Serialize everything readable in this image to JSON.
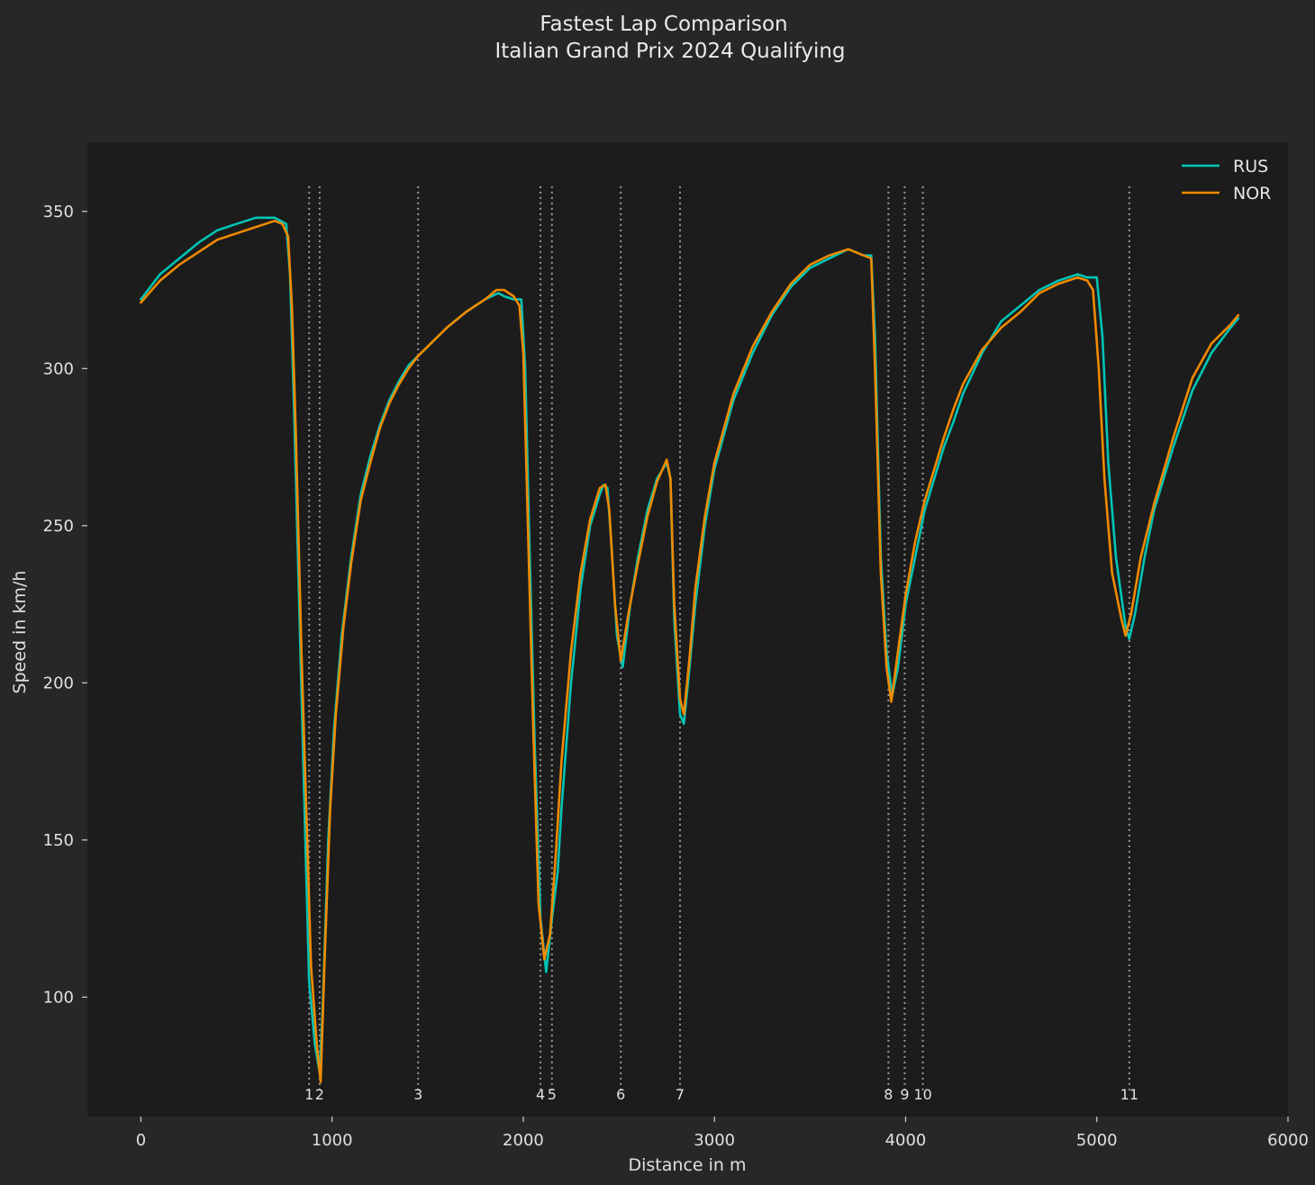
{
  "chart_data": {
    "type": "line",
    "title": "Fastest Lap Comparison",
    "subtitle": "Italian Grand Prix 2024 Qualifying",
    "xlabel": "Distance in m",
    "ylabel": "Speed in km/h",
    "xlim": [
      -280,
      6000
    ],
    "ylim": [
      62,
      372
    ],
    "x_ticks": [
      0,
      1000,
      2000,
      3000,
      4000,
      5000,
      6000
    ],
    "y_ticks": [
      100,
      150,
      200,
      250,
      300,
      350
    ],
    "grid": false,
    "legend": "top-right",
    "background": "#1c1c1c",
    "figure_background": "#272727",
    "corners": [
      {
        "number": "1",
        "distance": 880
      },
      {
        "number": "2",
        "distance": 935
      },
      {
        "number": "3",
        "distance": 1450
      },
      {
        "number": "4",
        "distance": 2090
      },
      {
        "number": "5",
        "distance": 2150
      },
      {
        "number": "6",
        "distance": 2510
      },
      {
        "number": "7",
        "distance": 2820
      },
      {
        "number": "8",
        "distance": 3910
      },
      {
        "number": "9",
        "distance": 3995
      },
      {
        "number": "10",
        "distance": 4090
      },
      {
        "number": "11",
        "distance": 5170
      }
    ],
    "series": [
      {
        "name": "RUS",
        "color": "#00c4b4",
        "points": [
          [
            0,
            322
          ],
          [
            100,
            330
          ],
          [
            200,
            335
          ],
          [
            300,
            340
          ],
          [
            400,
            344
          ],
          [
            500,
            346
          ],
          [
            600,
            348
          ],
          [
            700,
            348
          ],
          [
            760,
            346
          ],
          [
            780,
            330
          ],
          [
            800,
            290
          ],
          [
            830,
            220
          ],
          [
            860,
            150
          ],
          [
            880,
            105
          ],
          [
            910,
            85
          ],
          [
            935,
            76
          ],
          [
            950,
            95
          ],
          [
            980,
            150
          ],
          [
            1010,
            185
          ],
          [
            1050,
            215
          ],
          [
            1100,
            240
          ],
          [
            1150,
            260
          ],
          [
            1200,
            272
          ],
          [
            1250,
            282
          ],
          [
            1300,
            290
          ],
          [
            1350,
            296
          ],
          [
            1400,
            301
          ],
          [
            1450,
            304
          ],
          [
            1500,
            307
          ],
          [
            1600,
            313
          ],
          [
            1700,
            318
          ],
          [
            1800,
            322
          ],
          [
            1870,
            324
          ],
          [
            1900,
            323
          ],
          [
            1950,
            322
          ],
          [
            1990,
            322
          ],
          [
            2010,
            300
          ],
          [
            2030,
            250
          ],
          [
            2060,
            180
          ],
          [
            2090,
            125
          ],
          [
            2120,
            108
          ],
          [
            2150,
            125
          ],
          [
            2180,
            140
          ],
          [
            2200,
            160
          ],
          [
            2250,
            200
          ],
          [
            2300,
            230
          ],
          [
            2350,
            250
          ],
          [
            2400,
            260
          ],
          [
            2420,
            263
          ],
          [
            2440,
            262
          ],
          [
            2460,
            245
          ],
          [
            2490,
            215
          ],
          [
            2520,
            205
          ],
          [
            2560,
            225
          ],
          [
            2600,
            240
          ],
          [
            2650,
            255
          ],
          [
            2700,
            265
          ],
          [
            2750,
            270
          ],
          [
            2770,
            265
          ],
          [
            2790,
            220
          ],
          [
            2820,
            190
          ],
          [
            2840,
            187
          ],
          [
            2870,
            205
          ],
          [
            2900,
            225
          ],
          [
            2950,
            250
          ],
          [
            3000,
            268
          ],
          [
            3100,
            290
          ],
          [
            3200,
            305
          ],
          [
            3300,
            317
          ],
          [
            3400,
            326
          ],
          [
            3500,
            332
          ],
          [
            3600,
            335
          ],
          [
            3700,
            338
          ],
          [
            3780,
            336
          ],
          [
            3820,
            336
          ],
          [
            3840,
            310
          ],
          [
            3870,
            240
          ],
          [
            3900,
            210
          ],
          [
            3930,
            196
          ],
          [
            3960,
            205
          ],
          [
            4000,
            225
          ],
          [
            4050,
            240
          ],
          [
            4100,
            255
          ],
          [
            4150,
            265
          ],
          [
            4200,
            275
          ],
          [
            4250,
            283
          ],
          [
            4300,
            292
          ],
          [
            4400,
            305
          ],
          [
            4500,
            315
          ],
          [
            4600,
            320
          ],
          [
            4700,
            325
          ],
          [
            4800,
            328
          ],
          [
            4900,
            330
          ],
          [
            4950,
            329
          ],
          [
            5000,
            329
          ],
          [
            5030,
            310
          ],
          [
            5060,
            270
          ],
          [
            5100,
            240
          ],
          [
            5150,
            218
          ],
          [
            5170,
            214
          ],
          [
            5200,
            222
          ],
          [
            5250,
            240
          ],
          [
            5300,
            255
          ],
          [
            5400,
            275
          ],
          [
            5500,
            293
          ],
          [
            5600,
            305
          ],
          [
            5700,
            313
          ],
          [
            5740,
            316
          ]
        ]
      },
      {
        "name": "NOR",
        "color": "#f08a00",
        "points": [
          [
            0,
            321
          ],
          [
            100,
            328
          ],
          [
            200,
            333
          ],
          [
            300,
            337
          ],
          [
            400,
            341
          ],
          [
            500,
            343
          ],
          [
            600,
            345
          ],
          [
            700,
            347
          ],
          [
            740,
            346
          ],
          [
            770,
            342
          ],
          [
            790,
            320
          ],
          [
            810,
            280
          ],
          [
            840,
            210
          ],
          [
            870,
            150
          ],
          [
            890,
            110
          ],
          [
            920,
            85
          ],
          [
            940,
            73
          ],
          [
            960,
            110
          ],
          [
            990,
            160
          ],
          [
            1020,
            190
          ],
          [
            1060,
            218
          ],
          [
            1100,
            238
          ],
          [
            1150,
            258
          ],
          [
            1200,
            270
          ],
          [
            1250,
            281
          ],
          [
            1300,
            289
          ],
          [
            1350,
            295
          ],
          [
            1400,
            300
          ],
          [
            1450,
            304
          ],
          [
            1500,
            307
          ],
          [
            1600,
            313
          ],
          [
            1700,
            318
          ],
          [
            1800,
            322
          ],
          [
            1860,
            325
          ],
          [
            1900,
            325
          ],
          [
            1950,
            323
          ],
          [
            1980,
            320
          ],
          [
            2000,
            305
          ],
          [
            2020,
            260
          ],
          [
            2050,
            190
          ],
          [
            2080,
            130
          ],
          [
            2110,
            112
          ],
          [
            2140,
            120
          ],
          [
            2170,
            145
          ],
          [
            2200,
            175
          ],
          [
            2250,
            210
          ],
          [
            2300,
            235
          ],
          [
            2350,
            252
          ],
          [
            2400,
            262
          ],
          [
            2430,
            263
          ],
          [
            2450,
            255
          ],
          [
            2480,
            225
          ],
          [
            2510,
            207
          ],
          [
            2550,
            222
          ],
          [
            2600,
            238
          ],
          [
            2650,
            253
          ],
          [
            2700,
            264
          ],
          [
            2750,
            271
          ],
          [
            2770,
            265
          ],
          [
            2790,
            225
          ],
          [
            2820,
            195
          ],
          [
            2840,
            190
          ],
          [
            2870,
            208
          ],
          [
            2900,
            230
          ],
          [
            2950,
            253
          ],
          [
            3000,
            270
          ],
          [
            3100,
            292
          ],
          [
            3200,
            307
          ],
          [
            3300,
            318
          ],
          [
            3400,
            327
          ],
          [
            3500,
            333
          ],
          [
            3600,
            336
          ],
          [
            3700,
            338
          ],
          [
            3780,
            336
          ],
          [
            3820,
            335
          ],
          [
            3840,
            300
          ],
          [
            3870,
            235
          ],
          [
            3900,
            205
          ],
          [
            3925,
            194
          ],
          [
            3960,
            210
          ],
          [
            4000,
            228
          ],
          [
            4050,
            245
          ],
          [
            4100,
            258
          ],
          [
            4150,
            268
          ],
          [
            4200,
            278
          ],
          [
            4250,
            287
          ],
          [
            4300,
            295
          ],
          [
            4400,
            306
          ],
          [
            4500,
            313
          ],
          [
            4600,
            318
          ],
          [
            4700,
            324
          ],
          [
            4800,
            327
          ],
          [
            4900,
            329
          ],
          [
            4950,
            328
          ],
          [
            4980,
            325
          ],
          [
            5010,
            300
          ],
          [
            5040,
            265
          ],
          [
            5080,
            235
          ],
          [
            5130,
            220
          ],
          [
            5150,
            215
          ],
          [
            5180,
            222
          ],
          [
            5230,
            240
          ],
          [
            5300,
            257
          ],
          [
            5400,
            278
          ],
          [
            5500,
            297
          ],
          [
            5600,
            308
          ],
          [
            5700,
            314
          ],
          [
            5740,
            317
          ]
        ]
      }
    ]
  }
}
